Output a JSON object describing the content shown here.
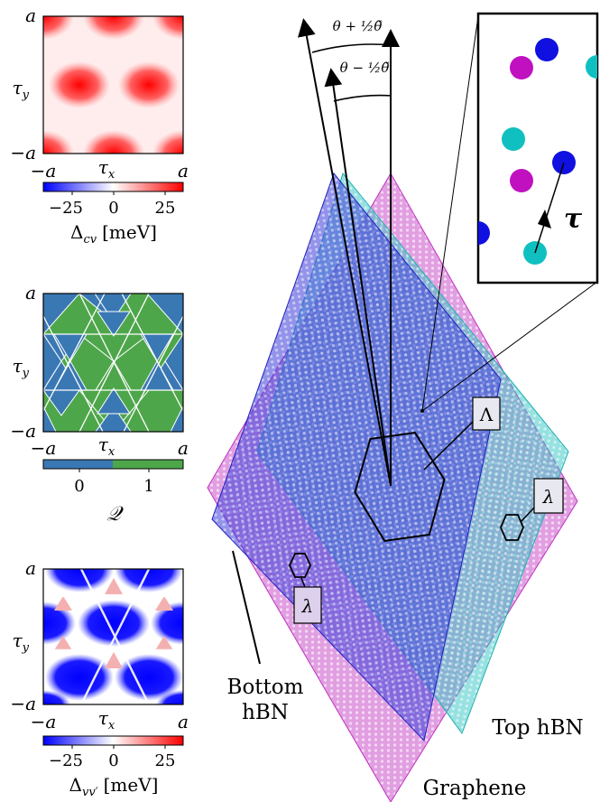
{
  "panels": [
    {
      "id": "delta-cv",
      "axis_min": "−a",
      "axis_max": "a",
      "x_label": "τ",
      "x_sub": "x",
      "y_label": "τ",
      "y_sub": "y",
      "colorbar_ticks": [
        "−25",
        "0",
        "25"
      ],
      "colorbar_label_main": "Δ",
      "colorbar_label_sub": "cv",
      "colorbar_label_unit": "[meV]",
      "colors": {
        "low": "#0000ff",
        "mid": "#ffffff",
        "high": "#ff0000"
      }
    },
    {
      "id": "Q",
      "axis_min": "−a",
      "axis_max": "a",
      "x_label": "τ",
      "x_sub": "x",
      "y_label": "τ",
      "y_sub": "y",
      "colorbar_ticks": [
        "0",
        "1"
      ],
      "colorbar_label_main": "𝒬",
      "colorbar_label_sub": "",
      "colorbar_label_unit": "",
      "colors": {
        "zero": "#3a78b4",
        "one": "#4ea64a"
      }
    },
    {
      "id": "delta-vv",
      "axis_min": "−a",
      "axis_max": "a",
      "x_label": "τ",
      "x_sub": "x",
      "y_label": "τ",
      "y_sub": "y",
      "colorbar_ticks": [
        "−25",
        "0",
        "25"
      ],
      "colorbar_label_main": "Δ",
      "colorbar_label_sub": "vv′",
      "colorbar_label_unit": "[meV]",
      "colors": {
        "low": "#0000ff",
        "mid": "#ffffff",
        "high": "#ff0000"
      }
    }
  ],
  "lattice": {
    "angle_outer": "θ + ½θ̃",
    "angle_inner": "θ − ½θ̃",
    "moire_label": "Λ",
    "small_label_right": "λ",
    "small_label_left": "λ",
    "tau_label": "τ",
    "layer_bottom_line1": "Bottom",
    "layer_bottom_line2": "hBN",
    "layer_top": "Top hBN",
    "layer_graphene": "Graphene",
    "colors": {
      "graphene": "#c040c0",
      "top_hbn": "#20c0c0",
      "bottom_hbn": "#2020d0",
      "inset_magenta": "#c010c0",
      "inset_cyan": "#10c0c0",
      "inset_blue": "#1010e0"
    }
  }
}
